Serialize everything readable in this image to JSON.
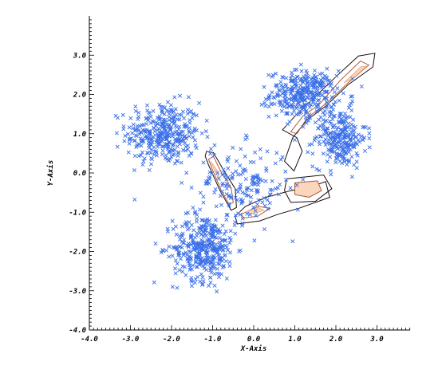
{
  "chart_data": {
    "type": "scatter",
    "title": "",
    "xlabel": "X-Axis",
    "ylabel": "Y-Axis",
    "xlim": [
      -4.0,
      4.0
    ],
    "ylim": [
      -4.0,
      4.0
    ],
    "x_ticks": [
      "-4.0",
      "-3.0",
      "-2.0",
      "-1.0",
      "0.0",
      "1.0",
      "2.0",
      "3.0"
    ],
    "y_ticks": [
      "-4.0",
      "-3.0",
      "-2.0",
      "-1.0",
      "0.0",
      "1.0",
      "2.0",
      "3.0"
    ],
    "grid": false,
    "legend": "none",
    "marker": "x",
    "colors": {
      "points": "#3a6fe8",
      "contours": [
        "#1a0a0a",
        "#5a2a1c",
        "#a85a3c",
        "#e08858",
        "#f3b08a",
        "#fbd6bc"
      ]
    },
    "clusters": [
      {
        "center": [
          -2.2,
          1.0
        ],
        "spread": [
          0.45,
          0.4
        ],
        "count": 360
      },
      {
        "center": [
          1.2,
          2.0
        ],
        "spread": [
          0.4,
          0.3
        ],
        "count": 330
      },
      {
        "center": [
          2.1,
          0.9
        ],
        "spread": [
          0.32,
          0.38
        ],
        "count": 260
      },
      {
        "center": [
          -1.2,
          -1.9
        ],
        "spread": [
          0.38,
          0.42
        ],
        "count": 370
      },
      {
        "center": [
          -0.3,
          -0.3
        ],
        "spread": [
          0.6,
          0.5
        ],
        "count": 170
      }
    ],
    "density_contours": [
      {
        "levels": [
          [
            [
              -1.18,
              0.43
            ],
            [
              -1.1,
              0.2
            ],
            [
              -0.82,
              -0.45
            ],
            [
              -0.55,
              -0.95
            ],
            [
              -0.42,
              -0.88
            ],
            [
              -0.45,
              -0.4
            ],
            [
              -0.72,
              0.05
            ],
            [
              -0.98,
              0.52
            ],
            [
              -1.15,
              0.55
            ]
          ],
          [
            [
              -1.1,
              0.35
            ],
            [
              -1.02,
              0.12
            ],
            [
              -0.8,
              -0.42
            ],
            [
              -0.6,
              -0.8
            ],
            [
              -0.5,
              -0.75
            ],
            [
              -0.55,
              -0.38
            ],
            [
              -0.78,
              0.0
            ],
            [
              -0.98,
              0.42
            ]
          ],
          [
            [
              -1.05,
              0.3
            ],
            [
              -0.95,
              0.05
            ],
            [
              -0.82,
              -0.2
            ],
            [
              -0.88,
              0.05
            ]
          ]
        ]
      },
      {
        "levels": [
          [
            [
              -0.45,
              -1.1
            ],
            [
              -0.2,
              -0.85
            ],
            [
              0.3,
              -0.62
            ],
            [
              0.9,
              -0.45
            ],
            [
              1.4,
              -0.35
            ],
            [
              1.75,
              -0.22
            ],
            [
              1.85,
              -0.62
            ],
            [
              1.1,
              -0.9
            ],
            [
              0.6,
              -1.05
            ],
            [
              0.15,
              -1.22
            ],
            [
              -0.4,
              -1.3
            ]
          ],
          [
            [
              -0.3,
              -1.05
            ],
            [
              0.1,
              -0.85
            ],
            [
              0.4,
              -0.9
            ],
            [
              0.1,
              -1.1
            ],
            [
              -0.25,
              -1.15
            ]
          ],
          [
            [
              -0.2,
              -1.0
            ],
            [
              0.1,
              -0.88
            ],
            [
              0.25,
              -0.95
            ],
            [
              -0.05,
              -1.05
            ]
          ]
        ]
      },
      {
        "levels": [
          [
            [
              0.7,
              1.1
            ],
            [
              1.05,
              1.5
            ],
            [
              1.4,
              1.85
            ],
            [
              2.0,
              2.45
            ],
            [
              2.55,
              2.98
            ],
            [
              2.95,
              3.05
            ],
            [
              2.9,
              2.7
            ],
            [
              2.3,
              2.25
            ],
            [
              1.75,
              1.7
            ],
            [
              1.3,
              1.35
            ],
            [
              0.95,
              0.9
            ],
            [
              0.75,
              0.3
            ],
            [
              0.98,
              0.05
            ],
            [
              1.18,
              0.55
            ],
            [
              1.05,
              0.9
            ]
          ],
          [
            [
              0.9,
              1.05
            ],
            [
              1.2,
              1.45
            ],
            [
              1.6,
              1.75
            ],
            [
              2.1,
              2.35
            ],
            [
              2.6,
              2.85
            ],
            [
              2.8,
              2.75
            ],
            [
              2.3,
              2.3
            ],
            [
              1.8,
              1.8
            ],
            [
              1.3,
              1.4
            ],
            [
              1.05,
              1.0
            ]
          ],
          [
            [
              2.2,
              2.3
            ],
            [
              2.6,
              2.7
            ],
            [
              2.75,
              2.72
            ],
            [
              2.4,
              2.4
            ]
          ]
        ]
      },
      {
        "levels": [
          [
            [
              0.8,
              -0.15
            ],
            [
              1.7,
              -0.05
            ],
            [
              1.9,
              -0.4
            ],
            [
              1.5,
              -0.72
            ],
            [
              0.9,
              -0.75
            ],
            [
              0.75,
              -0.45
            ]
          ],
          [
            [
              1.0,
              -0.25
            ],
            [
              1.55,
              -0.2
            ],
            [
              1.65,
              -0.45
            ],
            [
              1.35,
              -0.62
            ],
            [
              1.0,
              -0.55
            ]
          ]
        ]
      }
    ]
  }
}
